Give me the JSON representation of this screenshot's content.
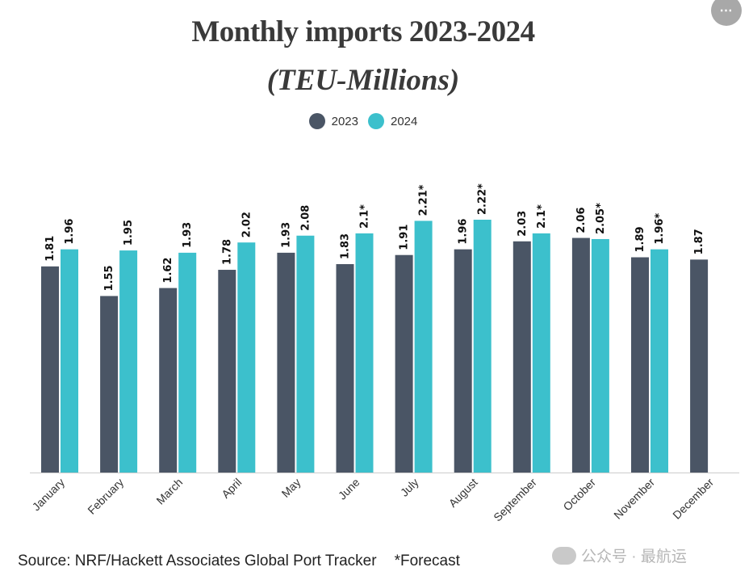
{
  "title": "Monthly imports 2023-2024",
  "subtitle": "(TEU-Millions)",
  "more_button_label": "⋯",
  "chart_data": {
    "type": "bar",
    "title": "Monthly imports 2023-2024",
    "subtitle": "(TEU-Millions)",
    "categories": [
      "January",
      "February",
      "March",
      "April",
      "May",
      "June",
      "July",
      "August",
      "September",
      "October",
      "November",
      "December"
    ],
    "series": [
      {
        "name": "2023",
        "color": "#4a5565",
        "values": [
          1.81,
          1.55,
          1.62,
          1.78,
          1.93,
          1.83,
          1.91,
          1.96,
          2.03,
          2.06,
          1.89,
          1.87
        ],
        "labels": [
          "1.81",
          "1.55",
          "1.62",
          "1.78",
          "1.93",
          "1.83",
          "1.91",
          "1.96",
          "2.03",
          "2.06",
          "1.89",
          "1.87"
        ]
      },
      {
        "name": "2024",
        "color": "#3cc0cc",
        "values": [
          1.96,
          1.95,
          1.93,
          2.02,
          2.08,
          2.1,
          2.21,
          2.22,
          2.1,
          2.05,
          1.96,
          null
        ],
        "labels": [
          "1.96",
          "1.95",
          "1.93",
          "2.02",
          "2.08",
          "2.1*",
          "2.21*",
          "2.22*",
          "2.1*",
          "2.05*",
          "1.96*",
          null
        ]
      }
    ],
    "ylim": [
      0.0,
      2.3
    ],
    "legend_position": "top-center",
    "grid": false
  },
  "footer": {
    "source": "Source: NRF/Hackett Associates Global Port Tracker",
    "note": "*Forecast"
  },
  "watermark": "公众号 · 最航运"
}
